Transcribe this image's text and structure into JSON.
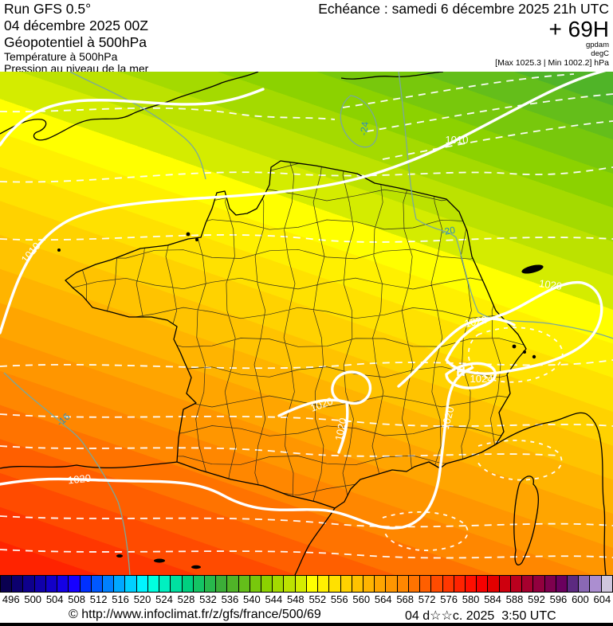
{
  "header": {
    "run": "Run GFS 0.5°",
    "run_date": "04 décembre 2025 00Z",
    "field1": "Géopotentiel à 500hPa",
    "field2": "Température à 500hPa",
    "field3": "Pression au niveau de la mer",
    "validity": "Echéance : samedi 6 décembre 2025 21h UTC",
    "lead_time": "+ 69H",
    "unit_geopotential": "gpdam",
    "unit_temperature": "degC",
    "pressure_extremes": "[Max 1025.3 | Min 1002.2] hPa"
  },
  "map": {
    "band_colors": [
      "#50b428",
      "#64be1a",
      "#78c80c",
      "#8cd200",
      "#a4da00",
      "#bce200",
      "#d4ec00",
      "#ffff00",
      "#fff000",
      "#ffe100",
      "#ffd200",
      "#ffc300",
      "#ffb400",
      "#ffa500",
      "#ff9600",
      "#ff8700",
      "#ff7300",
      "#ff5f00",
      "#ff4b00",
      "#ff3700",
      "#ff2300"
    ],
    "isobar_labels": [
      {
        "text": "1010"
      },
      {
        "text": "1010"
      },
      {
        "text": "1020"
      },
      {
        "text": "1020"
      },
      {
        "text": "1024"
      },
      {
        "text": "H"
      },
      {
        "text": "1020"
      },
      {
        "text": "1020"
      },
      {
        "text": "1020"
      },
      {
        "text": "1020"
      }
    ],
    "temp_labels": [
      {
        "text": "-24"
      },
      {
        "text": "-20"
      },
      {
        "text": "-16"
      }
    ]
  },
  "colorbar": {
    "unit": "gpdam",
    "labels": [
      "496",
      "500",
      "504",
      "508",
      "512",
      "516",
      "520",
      "524",
      "528",
      "532",
      "536",
      "540",
      "544",
      "548",
      "552",
      "556",
      "560",
      "564",
      "568",
      "572",
      "576",
      "580",
      "584",
      "588",
      "592",
      "596",
      "600",
      "604"
    ],
    "cell_colors": [
      "#0a0050",
      "#0c006e",
      "#0e008c",
      "#1000aa",
      "#1200c8",
      "#1400e6",
      "#1600ff",
      "#0030ff",
      "#0058ff",
      "#0080ff",
      "#00a8ff",
      "#00d0ff",
      "#00f4ff",
      "#00ffe0",
      "#00f0c0",
      "#00e0a0",
      "#00d080",
      "#14c464",
      "#28b84c",
      "#3cae38",
      "#50b428",
      "#64be1a",
      "#78c80c",
      "#8cd200",
      "#a4da00",
      "#bce200",
      "#d4ec00",
      "#ffff00",
      "#fff000",
      "#ffe100",
      "#ffd200",
      "#ffc300",
      "#ffb400",
      "#ffa500",
      "#ff9600",
      "#ff8700",
      "#ff7300",
      "#ff5f00",
      "#ff4b00",
      "#ff3700",
      "#ff2300",
      "#ff0f00",
      "#f60000",
      "#e20000",
      "#ce000e",
      "#ba001e",
      "#a6002e",
      "#92003e",
      "#7e004e",
      "#6a005e",
      "#5c2a80",
      "#8a68b4",
      "#ab8ed0",
      "#cfc6dd"
    ]
  },
  "footer": {
    "copyright": "© http://www.infoclimat.fr/z/gfs/france/500/69",
    "datetime": "04 d☆☆c. 2025  3:50 UTC"
  }
}
